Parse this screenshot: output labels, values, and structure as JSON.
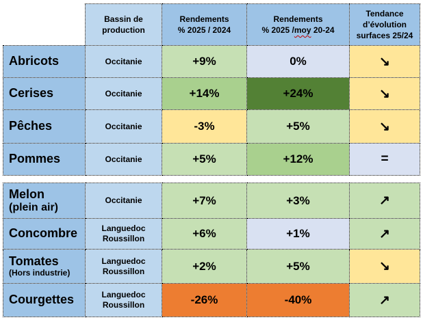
{
  "palette": {
    "header_blue": "#9DC3E6",
    "light_blue": "#BDD7EE",
    "row_blue": "#9DC3E6",
    "light_green": "#C6E0B4",
    "medium_green": "#A9D08E",
    "dark_green": "#538135",
    "yellow": "#FFE699",
    "lavender": "#D9E1F2",
    "orange": "#ED7D31"
  },
  "header": {
    "corner": "",
    "cells": [
      {
        "id": "bassin",
        "bg": "light_blue",
        "lines": [
          "Bassin de",
          "production"
        ]
      },
      {
        "id": "r2024",
        "bg": "header_blue",
        "lines": [
          "Rendements",
          "% 2025 / 2024"
        ]
      },
      {
        "id": "rmoy",
        "bg": "header_blue",
        "lines": [
          "Rendements",
          {
            "prefix": "% 2025 /",
            "wavy": "moy",
            "suffix": " 20-24"
          }
        ]
      },
      {
        "id": "trend",
        "bg": "header_blue",
        "lines": [
          "Tendance",
          "d’évolution",
          "surfaces 25/24"
        ]
      }
    ]
  },
  "groups": [
    {
      "id": "fruits",
      "rows": [
        {
          "product": "Abricots",
          "sub": null,
          "sub_large": false,
          "bassin": "Occitanie",
          "values": [
            {
              "text": "+9%",
              "bg": "light_green"
            },
            {
              "text": "0%",
              "bg": "lavender"
            }
          ],
          "trend": {
            "glyph": "↘",
            "bg": "yellow",
            "icon": "arrow-down-right-icon"
          }
        },
        {
          "product": "Cerises",
          "sub": null,
          "sub_large": false,
          "bassin": "Occitanie",
          "values": [
            {
              "text": "+14%",
              "bg": "medium_green"
            },
            {
              "text": "+24%",
              "bg": "dark_green"
            }
          ],
          "trend": {
            "glyph": "↘",
            "bg": "yellow",
            "icon": "arrow-down-right-icon"
          }
        },
        {
          "product": "Pêches",
          "sub": null,
          "sub_large": false,
          "bassin": "Occitanie",
          "values": [
            {
              "text": "-3%",
              "bg": "yellow"
            },
            {
              "text": "+5%",
              "bg": "light_green"
            }
          ],
          "trend": {
            "glyph": "↘",
            "bg": "yellow",
            "icon": "arrow-down-right-icon"
          }
        },
        {
          "product": "Pommes",
          "sub": null,
          "sub_large": false,
          "bassin": "Occitanie",
          "values": [
            {
              "text": "+5%",
              "bg": "light_green"
            },
            {
              "text": "+12%",
              "bg": "medium_green"
            }
          ],
          "trend": {
            "glyph": "=",
            "bg": "lavender",
            "icon": "equals-icon"
          }
        }
      ]
    },
    {
      "id": "vegetables",
      "rows": [
        {
          "product": "Melon",
          "sub": "(plein air)",
          "sub_large": true,
          "bassin": "Occitanie",
          "values": [
            {
              "text": "+7%",
              "bg": "light_green"
            },
            {
              "text": "+3%",
              "bg": "light_green"
            }
          ],
          "trend": {
            "glyph": "↗",
            "bg": "light_green",
            "icon": "arrow-up-right-icon"
          }
        },
        {
          "product": "Concombre",
          "sub": null,
          "sub_large": false,
          "bassin": "Languedoc Roussillon",
          "values": [
            {
              "text": "+6%",
              "bg": "light_green"
            },
            {
              "text": "+1%",
              "bg": "lavender"
            }
          ],
          "trend": {
            "glyph": "↗",
            "bg": "light_green",
            "icon": "arrow-up-right-icon"
          }
        },
        {
          "product": "Tomates",
          "sub": "(Hors industrie)",
          "sub_large": false,
          "bassin": "Languedoc Roussillon",
          "values": [
            {
              "text": "+2%",
              "bg": "light_green"
            },
            {
              "text": "+5%",
              "bg": "light_green"
            }
          ],
          "trend": {
            "glyph": "↘",
            "bg": "yellow",
            "icon": "arrow-down-right-icon"
          }
        },
        {
          "product": "Courgettes",
          "sub": null,
          "sub_large": false,
          "bassin": "Languedoc Roussillon",
          "values": [
            {
              "text": "-26%",
              "bg": "orange"
            },
            {
              "text": "-40%",
              "bg": "orange"
            }
          ],
          "trend": {
            "glyph": "↗",
            "bg": "light_green",
            "icon": "arrow-up-right-icon"
          }
        }
      ]
    }
  ]
}
